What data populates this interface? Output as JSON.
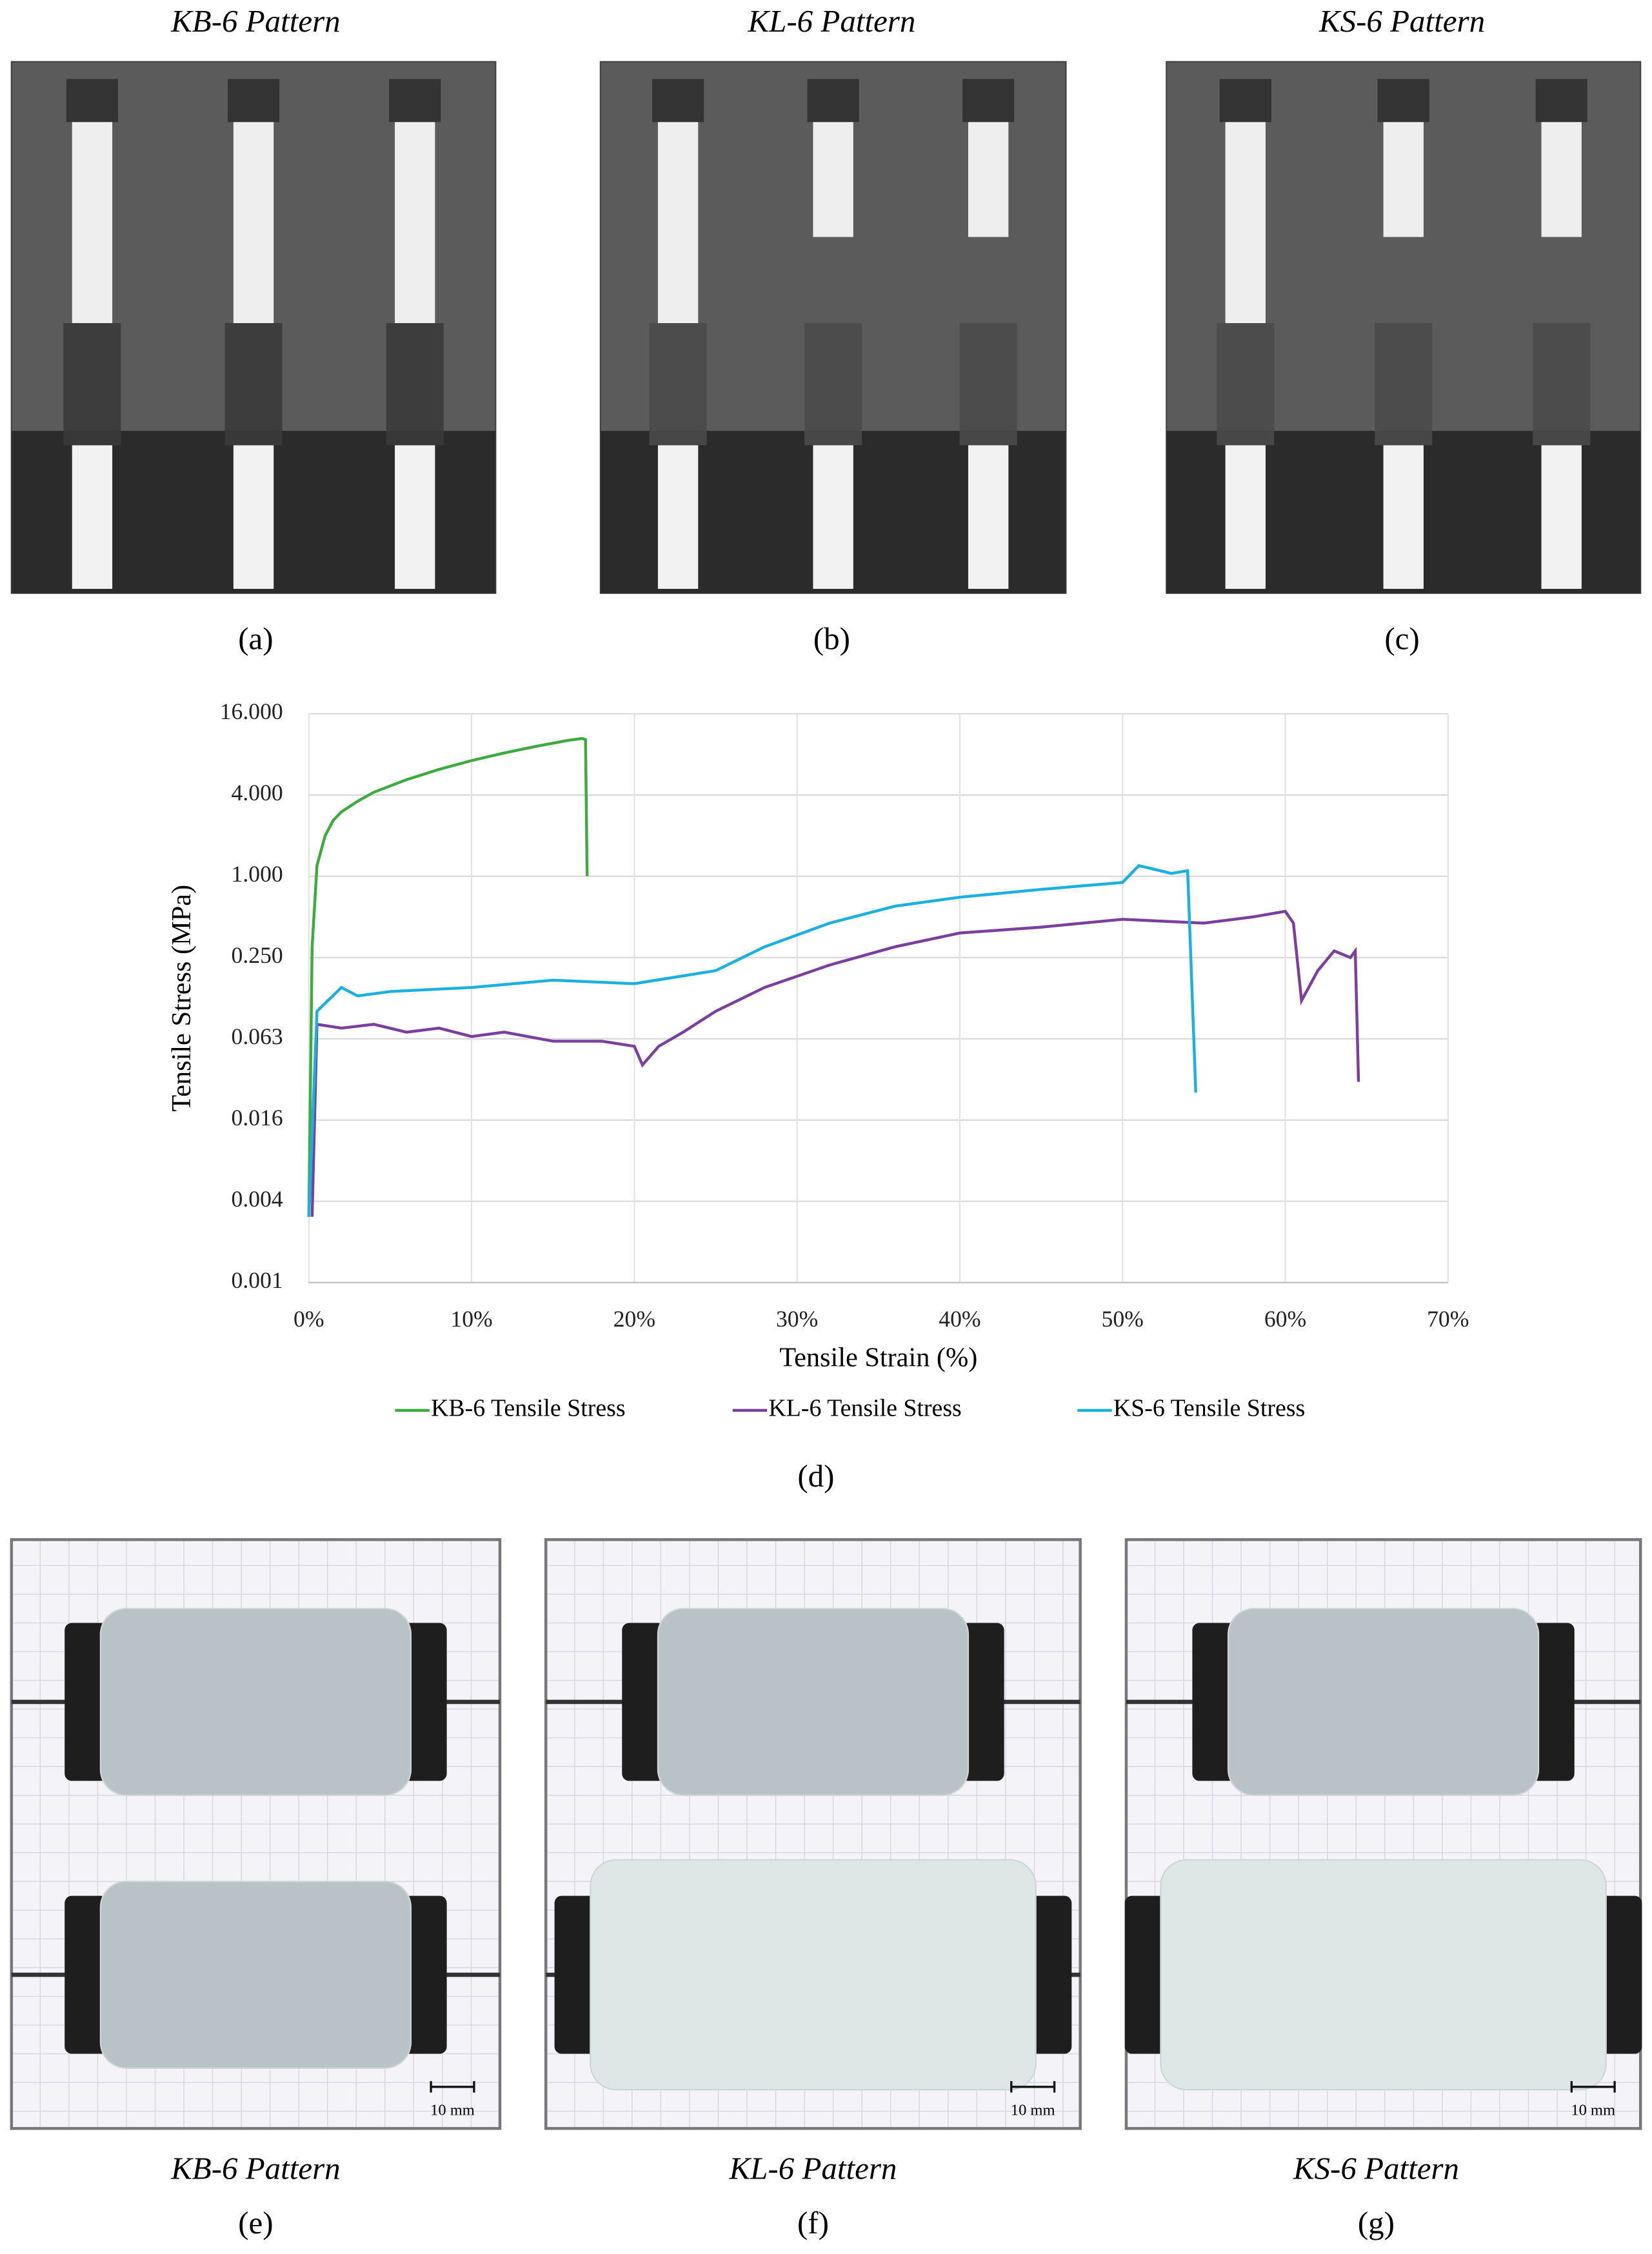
{
  "top_titles": [
    "KB-6 Pattern",
    "KL-6 Pattern",
    "KS-6 Pattern"
  ],
  "top_labels": [
    "(a)",
    "(b)",
    "(c)"
  ],
  "chart_label": "(d)",
  "bottom_titles": [
    "KB-6 Pattern",
    "KL-6 Pattern",
    "KS-6 Pattern"
  ],
  "bottom_labels": [
    "(e)",
    "(f)",
    "(g)"
  ],
  "scale_labels": [
    "10 mm",
    "10 mm",
    "10 mm"
  ],
  "chart_data": {
    "type": "line",
    "x_label": "Tensile Strain (%)",
    "y_label": "Tensile Stress (MPa)",
    "y_scale": "log",
    "grid": true,
    "legend": "bottom",
    "xlim": [
      0,
      70
    ],
    "xticks": [
      {
        "value": 0,
        "label": "0%"
      },
      {
        "value": 10,
        "label": "10%"
      },
      {
        "value": 20,
        "label": "20%"
      },
      {
        "value": 30,
        "label": "30%"
      },
      {
        "value": 40,
        "label": "40%"
      },
      {
        "value": 50,
        "label": "50%"
      },
      {
        "value": 60,
        "label": "60%"
      },
      {
        "value": 70,
        "label": "70%"
      }
    ],
    "ylim": [
      0.0009765625,
      16
    ],
    "yticks": [
      {
        "value": 0.0009765625,
        "label": "0.001"
      },
      {
        "value": 0.00390625,
        "label": "0.004"
      },
      {
        "value": 0.015625,
        "label": "0.016"
      },
      {
        "value": 0.0625,
        "label": "0.063"
      },
      {
        "value": 0.25,
        "label": "0.250"
      },
      {
        "value": 1,
        "label": "1.000"
      },
      {
        "value": 4,
        "label": "4.000"
      },
      {
        "value": 16,
        "label": "16.000"
      }
    ],
    "series": [
      {
        "name": "KB-6 Tensile Stress",
        "color": "#3dab3d",
        "x": [
          0,
          0.2,
          0.5,
          1,
          1.5,
          2,
          3,
          4,
          6,
          8,
          10,
          12,
          14,
          16,
          16.8,
          17,
          17.1
        ],
        "values": [
          0.003,
          0.3,
          1.2,
          2.0,
          2.6,
          3.0,
          3.6,
          4.2,
          5.2,
          6.2,
          7.2,
          8.2,
          9.2,
          10.2,
          10.5,
          10.3,
          1.0
        ]
      },
      {
        "name": "KL-6 Tensile Stress",
        "color": "#7b3fa0",
        "x": [
          0.2,
          0.5,
          2,
          4,
          6,
          8,
          10,
          12,
          15,
          18,
          20,
          20.5,
          21.5,
          23,
          25,
          28,
          32,
          36,
          40,
          45,
          50,
          55,
          58,
          60,
          60.5,
          61,
          62,
          63,
          64,
          64.3,
          64.5
        ],
        "values": [
          0.003,
          0.08,
          0.075,
          0.08,
          0.07,
          0.075,
          0.065,
          0.07,
          0.06,
          0.06,
          0.055,
          0.04,
          0.055,
          0.07,
          0.1,
          0.15,
          0.22,
          0.3,
          0.38,
          0.42,
          0.48,
          0.45,
          0.5,
          0.55,
          0.45,
          0.12,
          0.2,
          0.28,
          0.25,
          0.28,
          0.03
        ]
      },
      {
        "name": "KS-6 Tensile Stress",
        "color": "#1ab0e0",
        "x": [
          0,
          0.5,
          2,
          3,
          5,
          10,
          15,
          20,
          25,
          28,
          32,
          36,
          40,
          45,
          50,
          51,
          53,
          54,
          54.5
        ],
        "values": [
          0.003,
          0.1,
          0.15,
          0.13,
          0.14,
          0.15,
          0.17,
          0.16,
          0.2,
          0.3,
          0.45,
          0.6,
          0.7,
          0.8,
          0.9,
          1.2,
          1.05,
          1.1,
          0.025
        ]
      }
    ]
  }
}
